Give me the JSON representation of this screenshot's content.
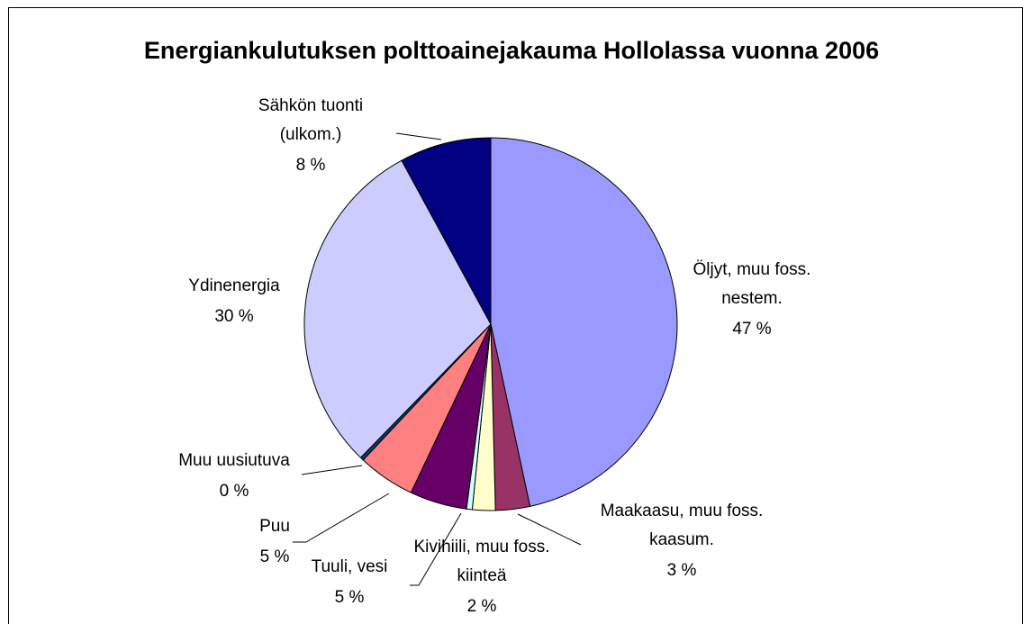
{
  "chart_data": {
    "type": "pie",
    "title": "Energiankulutuksen polttoainejakauma Hollolassa vuonna 2006",
    "categories": [
      "Öljyt, muu foss. nestem.",
      "Maakaasu, muu foss. kaasum.",
      "Kivihiili, muu foss. kiinteä",
      null,
      "Tuuli, vesi",
      "Puu",
      "Muu uusiutuva",
      "Ydinenergia",
      "Sähkön tuonti (ulkom.)"
    ],
    "values": [
      47,
      3,
      2,
      0.5,
      5,
      5,
      0.3,
      30,
      8
    ],
    "value_labels": [
      "47 %",
      "3 %",
      "2 %",
      null,
      "5 %",
      "5 %",
      "0 %",
      "30 %",
      "8 %"
    ],
    "colors": [
      "#9999ff",
      "#993366",
      "#ffffcc",
      "#ccffff",
      "#660066",
      "#ff8080",
      "#0a3a70",
      "#ccccff",
      "#000080"
    ]
  }
}
